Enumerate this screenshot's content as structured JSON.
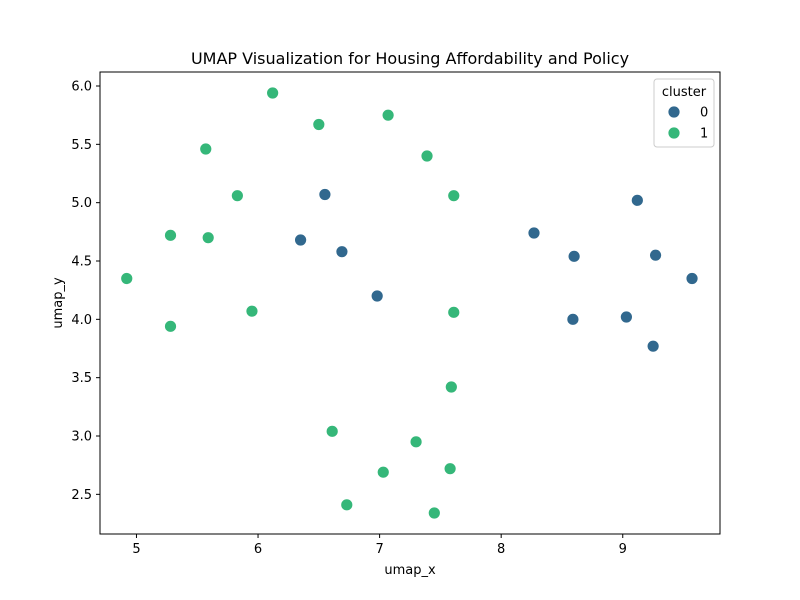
{
  "chart_data": {
    "type": "scatter",
    "title": "UMAP Visualization for Housing Affordability and Policy",
    "xlabel": "umap_x",
    "ylabel": "umap_y",
    "xlim": [
      4.7,
      9.8
    ],
    "ylim": [
      2.16,
      6.12
    ],
    "xticks": [
      5,
      6,
      7,
      8,
      9
    ],
    "yticks": [
      2.5,
      3.0,
      3.5,
      4.0,
      4.5,
      5.0,
      5.5,
      6.0
    ],
    "xtick_labels": [
      "5",
      "6",
      "7",
      "8",
      "9"
    ],
    "ytick_labels": [
      "2.5",
      "3.0",
      "3.5",
      "4.0",
      "4.5",
      "5.0",
      "5.5",
      "6.0"
    ],
    "grid": false,
    "legend": {
      "title": "cluster",
      "placement": "top-right"
    },
    "series": [
      {
        "name": "0",
        "color": "#31688e",
        "points": [
          [
            6.55,
            5.07
          ],
          [
            6.35,
            4.68
          ],
          [
            6.69,
            4.58
          ],
          [
            6.98,
            4.2
          ],
          [
            8.27,
            4.74
          ],
          [
            8.6,
            4.54
          ],
          [
            8.59,
            4.0
          ],
          [
            9.12,
            5.02
          ],
          [
            9.27,
            4.55
          ],
          [
            9.03,
            4.02
          ],
          [
            9.25,
            3.77
          ],
          [
            9.57,
            4.35
          ]
        ]
      },
      {
        "name": "1",
        "color": "#35b779",
        "points": [
          [
            6.12,
            5.94
          ],
          [
            6.5,
            5.67
          ],
          [
            7.07,
            5.75
          ],
          [
            5.57,
            5.46
          ],
          [
            7.39,
            5.4
          ],
          [
            5.83,
            5.06
          ],
          [
            7.61,
            5.06
          ],
          [
            5.28,
            4.72
          ],
          [
            5.59,
            4.7
          ],
          [
            4.92,
            4.35
          ],
          [
            5.95,
            4.07
          ],
          [
            5.28,
            3.94
          ],
          [
            7.61,
            4.06
          ],
          [
            7.59,
            3.42
          ],
          [
            6.61,
            3.04
          ],
          [
            7.3,
            2.95
          ],
          [
            7.03,
            2.69
          ],
          [
            7.58,
            2.72
          ],
          [
            6.73,
            2.41
          ],
          [
            7.45,
            2.34
          ]
        ]
      }
    ]
  }
}
